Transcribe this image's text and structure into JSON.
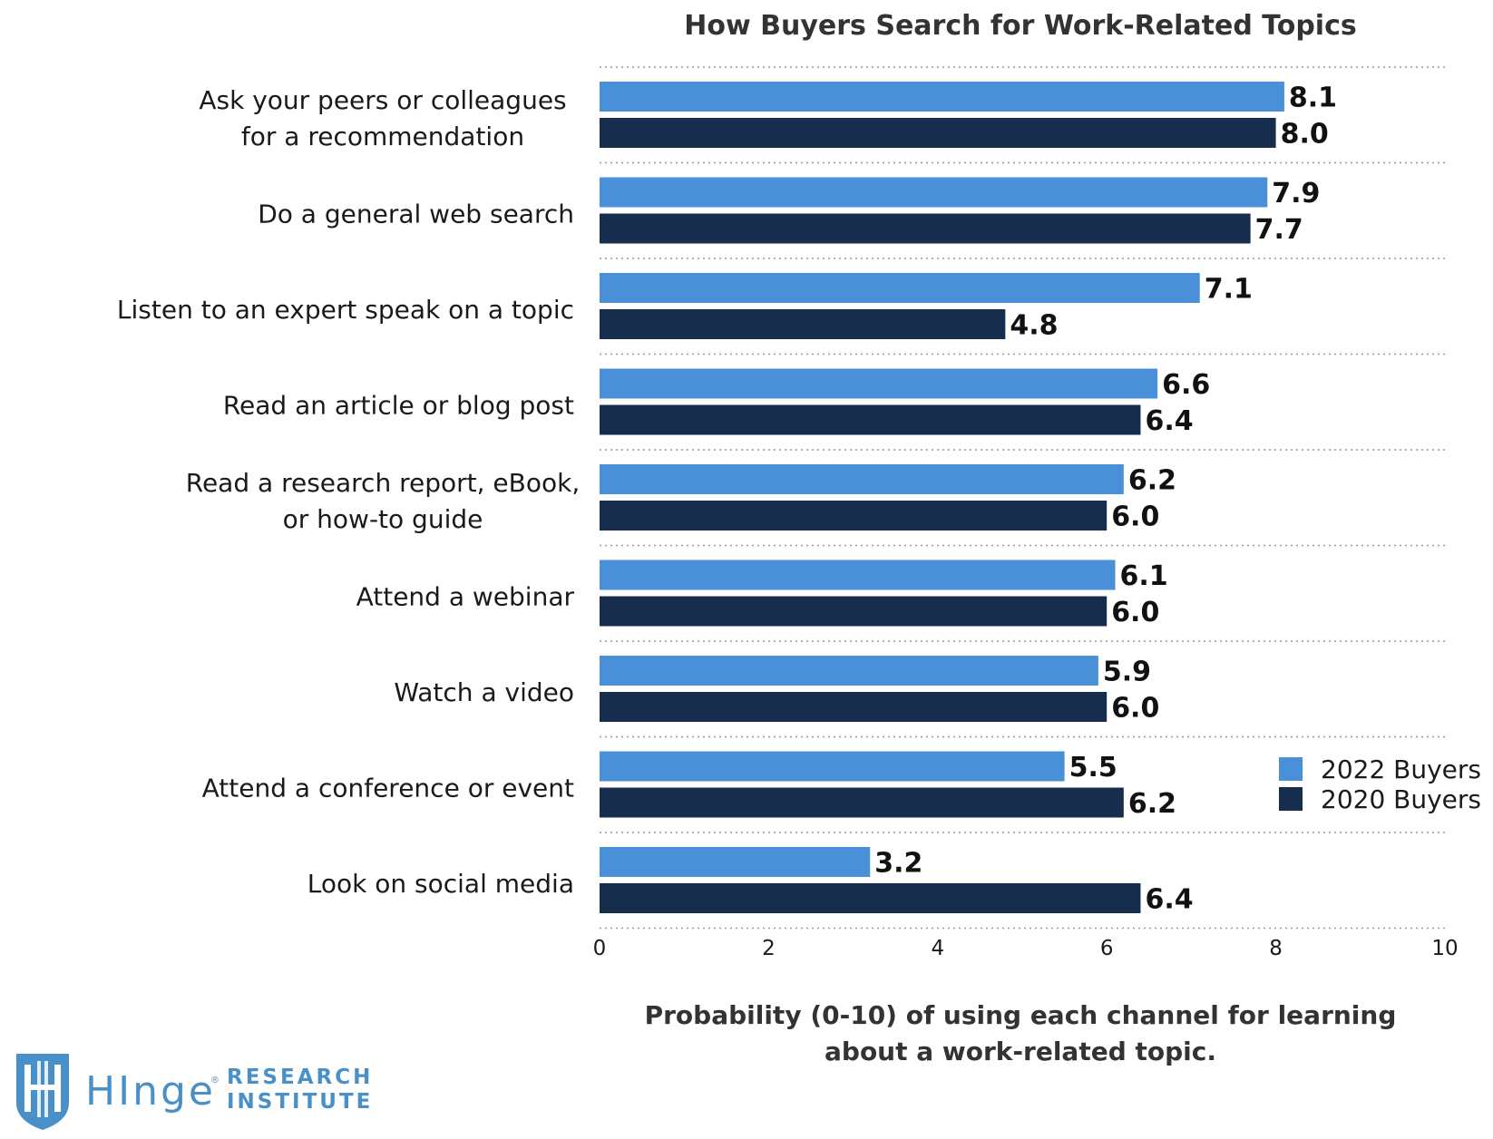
{
  "chart_data": {
    "type": "bar",
    "orientation": "horizontal",
    "title": "How Buyers Search for Work-Related Topics",
    "xlabel": [
      "Probability (0-10) of using each channel for learning",
      "about a work-related topic."
    ],
    "xlim": [
      0,
      10
    ],
    "xticks": [
      0,
      2,
      4,
      6,
      8,
      10
    ],
    "grid": "horizontal dotted separators",
    "legend_position": "right",
    "categories": [
      [
        "Ask your peers or colleagues",
        "for a recommendation"
      ],
      [
        "Do a general web search"
      ],
      [
        "Listen to an expert speak on a topic"
      ],
      [
        "Read an article or blog post"
      ],
      [
        "Read a research report, eBook,",
        "or how-to guide"
      ],
      [
        "Attend a webinar"
      ],
      [
        "Watch a video"
      ],
      [
        "Attend a conference or event"
      ],
      [
        "Look on social media"
      ]
    ],
    "series": [
      {
        "name": "2022 Buyers",
        "color": "#4a90d9",
        "values": [
          8.1,
          7.9,
          7.1,
          6.6,
          6.2,
          6.1,
          5.9,
          5.5,
          3.2
        ],
        "labels": [
          "8.1",
          "7.9",
          "7.1",
          "6.6",
          "6.2",
          "6.1",
          "5.9",
          "5.5",
          "3.2"
        ]
      },
      {
        "name": "2020 Buyers",
        "color": "#162d4d",
        "values": [
          8.0,
          7.7,
          4.8,
          6.4,
          6.0,
          6.0,
          6.0,
          6.2,
          6.4
        ],
        "labels": [
          "8.0",
          "7.7",
          "4.8",
          "6.4",
          "6.0",
          "6.0",
          "6.0",
          "6.2",
          "6.4"
        ]
      }
    ]
  },
  "logo": {
    "icon": "shield-logo-icon",
    "brand": "HInge",
    "registered": "®",
    "line1": "RESEARCH",
    "line2": "INSTITUTE",
    "color": "#4a90c8"
  }
}
